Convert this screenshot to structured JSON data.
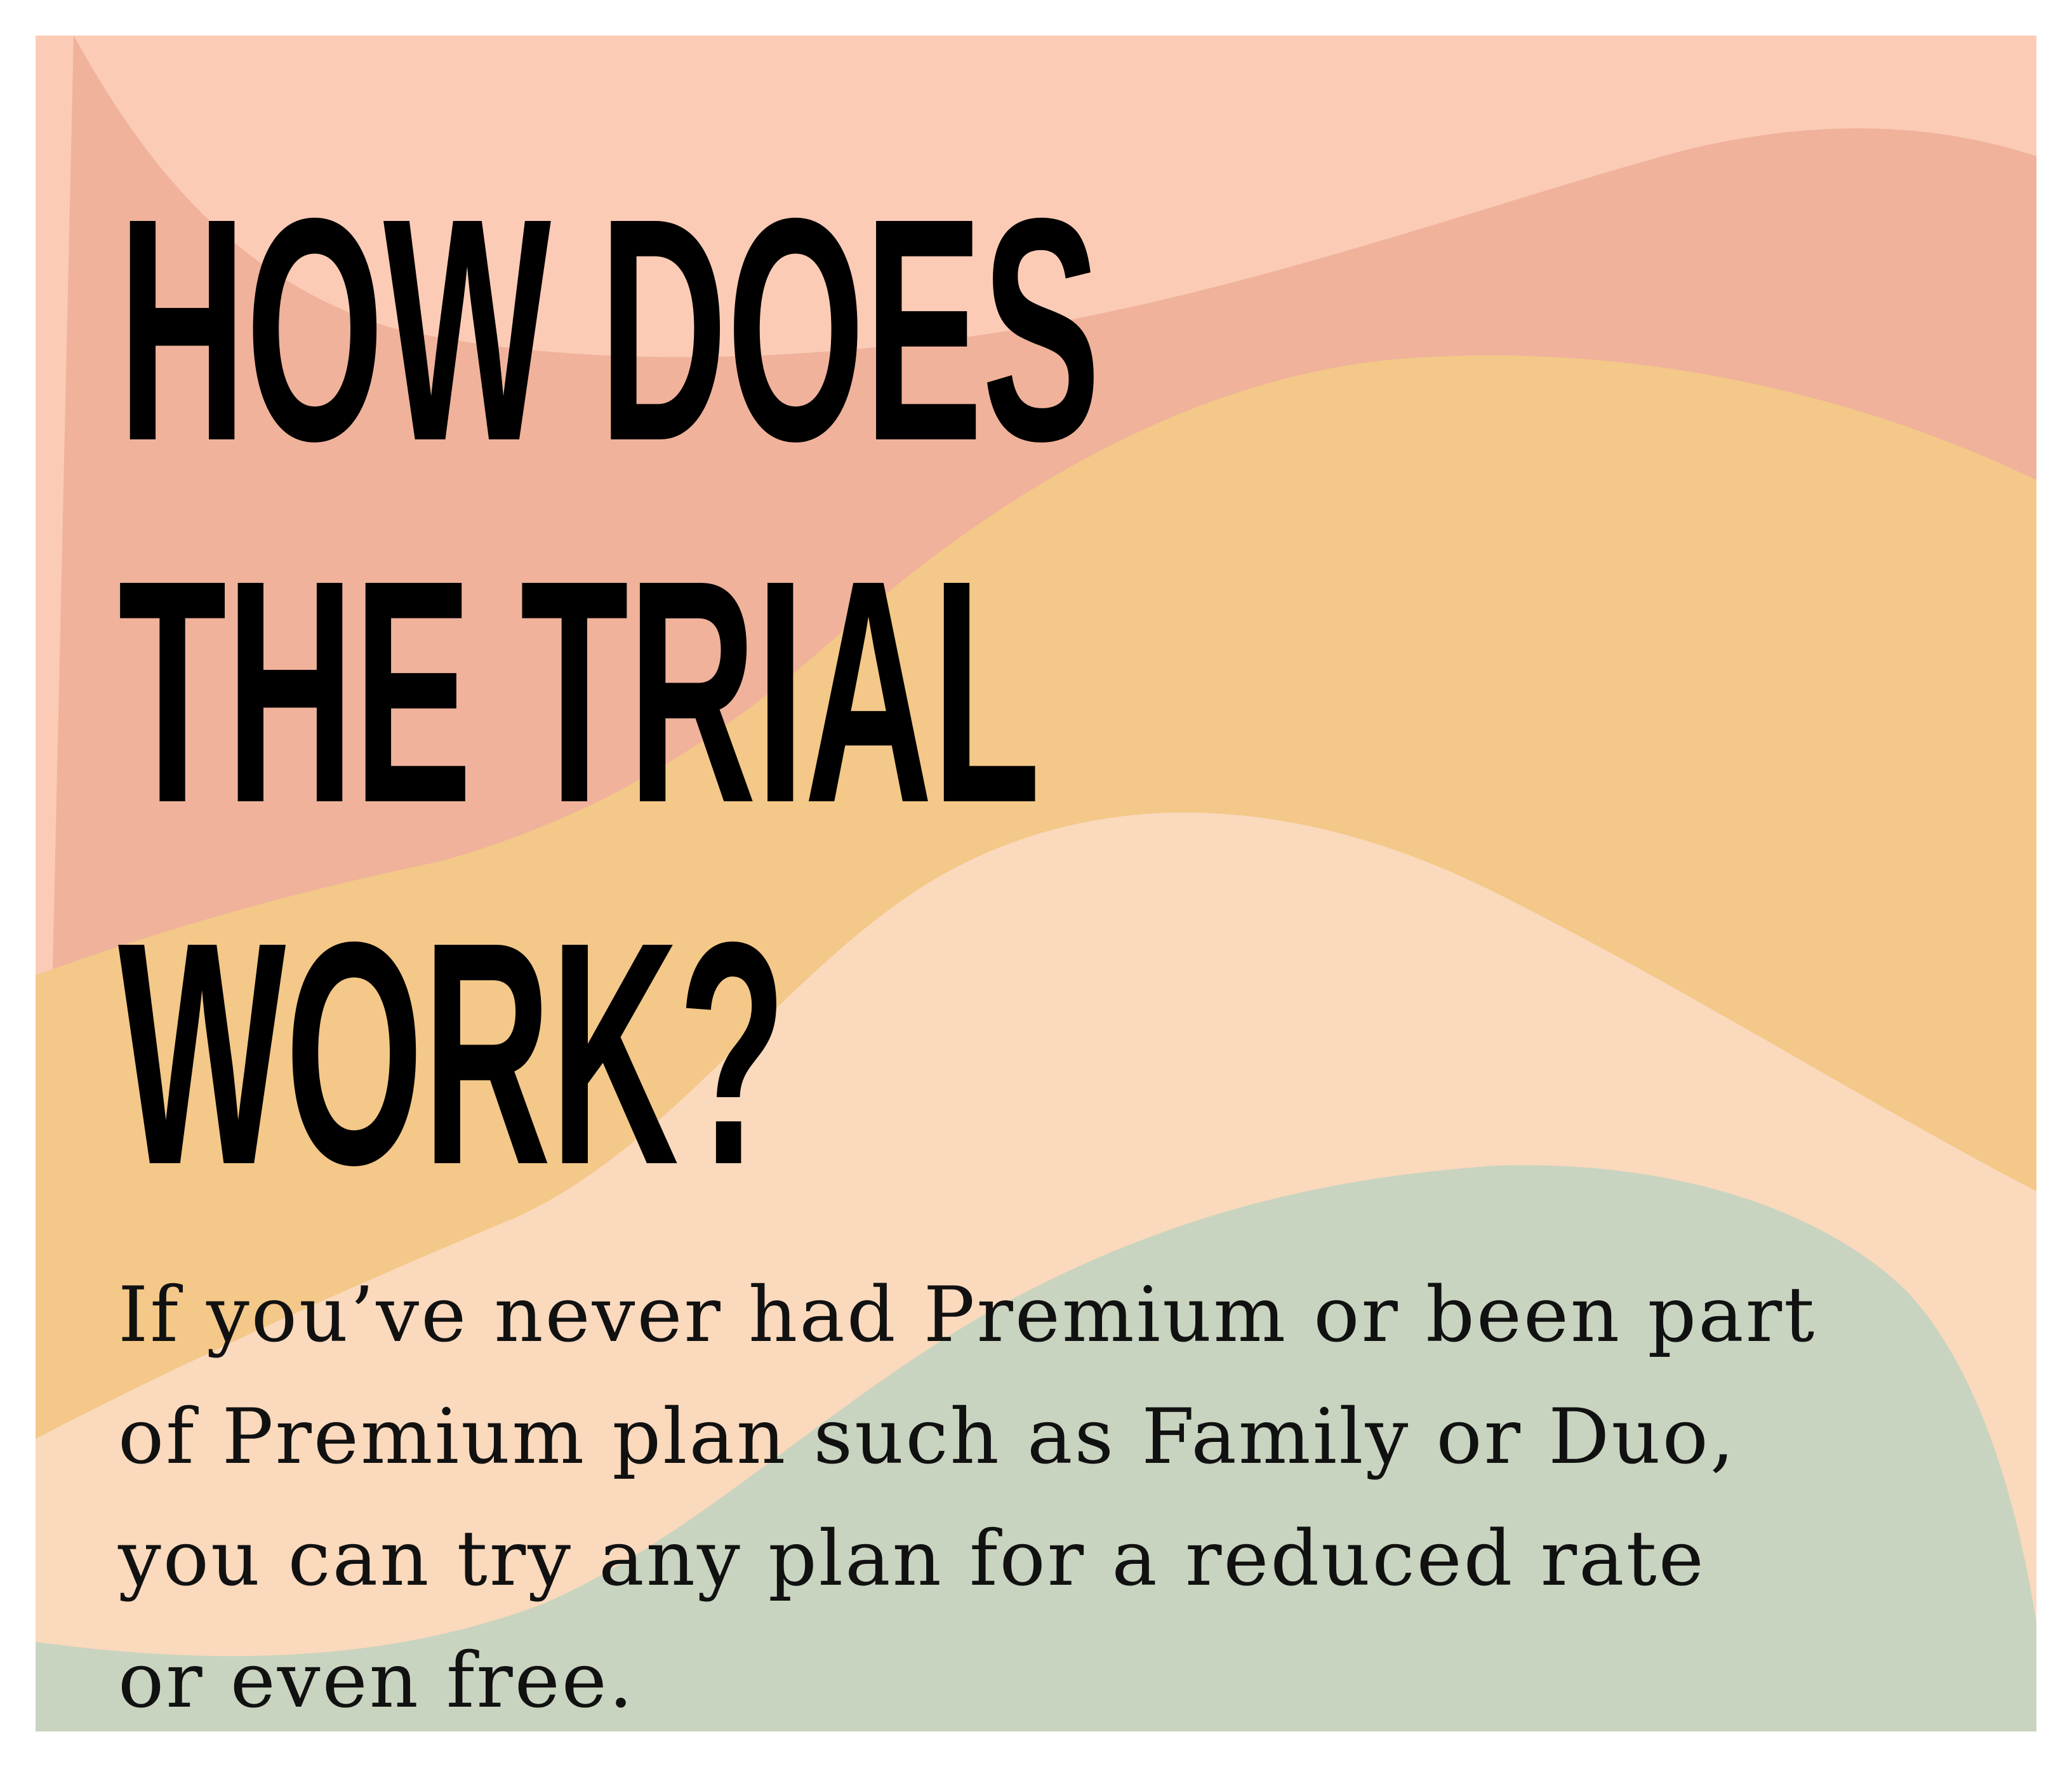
{
  "headline": {
    "line1": "HOW DOES",
    "line2": "THE TRIAL",
    "line3": "WORK?"
  },
  "body": {
    "line1": "If you’ve never had Premium or been part",
    "line2": "of Premium plan such as Family or Duo,",
    "line3": "you can try any plan for a reduced rate",
    "line4": "or even free."
  },
  "colors": {
    "peach_light": "#fbcbb6",
    "salmon": "#f0b29b",
    "mustard": "#f3c888",
    "cream": "#fad9bd",
    "sage": "#c8d4bf",
    "text": "#000000"
  }
}
